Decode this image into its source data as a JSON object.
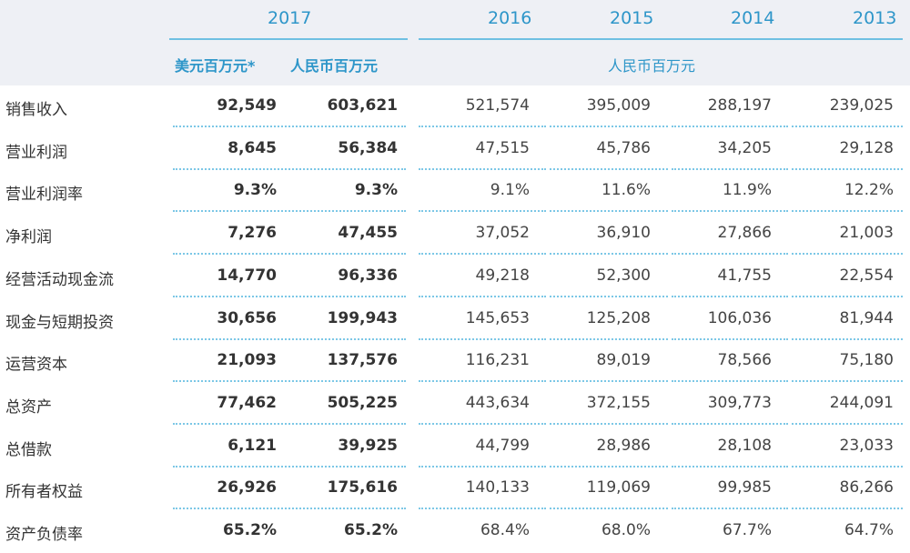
{
  "header": {
    "years": [
      "2017",
      "2016",
      "2015",
      "2014",
      "2013"
    ],
    "units": {
      "usd": "美元百万元*",
      "rmb_2017": "人民币百万元",
      "rmb_history": "人民币百万元"
    }
  },
  "rows": [
    {
      "label": "销售收入",
      "v": [
        "92,549",
        "603,621",
        "521,574",
        "395,009",
        "288,197",
        "239,025"
      ]
    },
    {
      "label": "营业利润",
      "v": [
        "8,645",
        "56,384",
        "47,515",
        "45,786",
        "34,205",
        "29,128"
      ]
    },
    {
      "label": "营业利润率",
      "v": [
        "9.3%",
        "9.3%",
        "9.1%",
        "11.6%",
        "11.9%",
        "12.2%"
      ]
    },
    {
      "label": "净利润",
      "v": [
        "7,276",
        "47,455",
        "37,052",
        "36,910",
        "27,866",
        "21,003"
      ]
    },
    {
      "label": "经营活动现金流",
      "v": [
        "14,770",
        "96,336",
        "49,218",
        "52,300",
        "41,755",
        "22,554"
      ]
    },
    {
      "label": "现金与短期投资",
      "v": [
        "30,656",
        "199,943",
        "145,653",
        "125,208",
        "106,036",
        "81,944"
      ]
    },
    {
      "label": "运营资本",
      "v": [
        "21,093",
        "137,576",
        "116,231",
        "89,019",
        "78,566",
        "75,180"
      ]
    },
    {
      "label": "总资产",
      "v": [
        "77,462",
        "505,225",
        "443,634",
        "372,155",
        "309,773",
        "244,091"
      ]
    },
    {
      "label": "总借款",
      "v": [
        "6,121",
        "39,925",
        "44,799",
        "28,986",
        "28,108",
        "23,033"
      ]
    },
    {
      "label": "所有者权益",
      "v": [
        "26,926",
        "175,616",
        "140,133",
        "119,069",
        "99,985",
        "86,266"
      ]
    },
    {
      "label": "资产负债率",
      "v": [
        "65.2%",
        "65.2%",
        "68.4%",
        "68.0%",
        "67.7%",
        "64.7%"
      ]
    }
  ],
  "colors": {
    "accent": "#2e96c9",
    "rule": "#6fc0e2",
    "dotted": "#7cc7e6",
    "header_bg": "#eef0f5"
  }
}
